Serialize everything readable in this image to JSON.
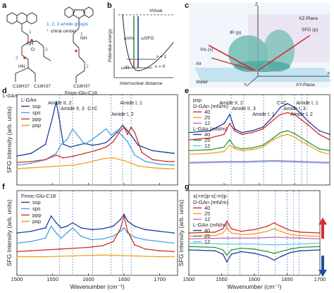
{
  "panel_a": {
    "label": "a",
    "legend_amide": "1, 2, 3 amide groups",
    "legend_chiral": "chiral center",
    "mol1_name": "L-GAn",
    "mol1_chain": "C18H37",
    "mol2_name": "Fmoc-Glu-C18",
    "mol2_chain": "C18H37",
    "amide_numbers": [
      "1",
      "2",
      "3",
      "1",
      "2"
    ],
    "nh": "NH",
    "hn": "HN",
    "o": "O",
    "colors": {
      "amide_number": "#2f6fd0",
      "chiral": "#e03020"
    }
  },
  "panel_b": {
    "label": "b",
    "virtual": "Virtual",
    "v1": "v = 1",
    "v0": "v = 0",
    "w_vis": "ωVis",
    "w_sfg": "ωSFG",
    "w_ir": "ωIR",
    "ylabel": "Potential energy",
    "xlabel": "Internuclear distance"
  },
  "panel_c": {
    "label": "c",
    "z": "Z",
    "xz_plane": "XZ-Plane",
    "xy_plane": "XY-Plane",
    "air": "Air",
    "water": "Water",
    "ir": "IR (p)",
    "vis": "Vis (s)",
    "sfg": "SFG (p)",
    "x": "X",
    "y": "Y"
  },
  "chart_data": [
    {
      "type": "line",
      "panel": "d",
      "xlabel": "",
      "ylabel": "SFG Intensity (arb. units)",
      "xlim": [
        1500,
        1725
      ],
      "legend_title": "L-GAn",
      "legend_position": "top-left",
      "series": [
        {
          "name": "ssp",
          "color": "#1f3f9a",
          "x": [
            1500,
            1520,
            1540,
            1550,
            1555,
            1560,
            1565,
            1575,
            1585,
            1595,
            1605,
            1615,
            1625,
            1632,
            1640,
            1648,
            1655,
            1660,
            1670,
            1690,
            1710,
            1720
          ],
          "y": [
            0.32,
            0.35,
            0.45,
            0.75,
            0.92,
            0.7,
            0.45,
            0.42,
            0.44,
            0.46,
            0.44,
            0.45,
            0.47,
            0.52,
            0.58,
            0.66,
            0.6,
            0.55,
            0.44,
            0.38,
            0.36,
            0.35
          ]
        },
        {
          "name": "sps",
          "color": "#4aa0e0",
          "x": [
            1500,
            1520,
            1540,
            1555,
            1562,
            1570,
            1578,
            1585,
            1595,
            1605,
            1615,
            1625,
            1632,
            1640,
            1648,
            1655,
            1665,
            1680,
            1700,
            1720
          ],
          "y": [
            0.22,
            0.24,
            0.28,
            0.35,
            0.45,
            0.5,
            0.62,
            0.55,
            0.45,
            0.5,
            0.56,
            0.62,
            0.55,
            0.6,
            0.54,
            0.48,
            0.33,
            0.26,
            0.23,
            0.22
          ]
        },
        {
          "name": "ppp",
          "color": "#d0302a",
          "x": [
            1500,
            1520,
            1540,
            1555,
            1565,
            1580,
            1595,
            1610,
            1625,
            1635,
            1645,
            1650,
            1655,
            1660,
            1665,
            1675,
            1690,
            1710,
            1720
          ],
          "y": [
            0.25,
            0.26,
            0.28,
            0.33,
            0.3,
            0.32,
            0.35,
            0.38,
            0.42,
            0.48,
            0.6,
            0.64,
            0.56,
            0.64,
            0.58,
            0.36,
            0.28,
            0.26,
            0.26
          ]
        },
        {
          "name": "psp",
          "color": "#f0a020",
          "x": [
            1500,
            1520,
            1540,
            1560,
            1580,
            1600,
            1620,
            1635,
            1650,
            1660,
            1670,
            1690,
            1710,
            1720
          ],
          "y": [
            0.18,
            0.19,
            0.2,
            0.21,
            0.22,
            0.25,
            0.29,
            0.3,
            0.27,
            0.24,
            0.21,
            0.19,
            0.18,
            0.18
          ]
        }
      ],
      "annotations": [
        {
          "text": "Amide II, 2",
          "x": 1560
        },
        {
          "text": "Amide II, 3",
          "x": 1578
        },
        {
          "text": "Amide I, 2",
          "x": 1648
        },
        {
          "text": "Amide I, 1",
          "x": 1660
        },
        {
          "text": "C=C",
          "x": 1606
        }
      ],
      "dashed_lines_x": [
        1560,
        1578,
        1606,
        1632,
        1648,
        1660
      ]
    },
    {
      "type": "line",
      "panel": "e",
      "xlabel": "",
      "ylabel": "",
      "xlim": [
        1500,
        1700
      ],
      "legend_title": "psp",
      "legend_position": "top-left",
      "series": [
        {
          "name": "D-GAn 40",
          "color": "#d0302a",
          "x": [
            1500,
            1530,
            1550,
            1558,
            1565,
            1575,
            1590,
            1605,
            1620,
            1630,
            1640,
            1650,
            1660,
            1670,
            1685,
            1700
          ],
          "y": [
            0.5,
            0.52,
            0.56,
            0.68,
            0.6,
            0.56,
            0.58,
            0.62,
            0.72,
            0.78,
            0.8,
            0.78,
            0.72,
            0.66,
            0.56,
            0.5
          ]
        },
        {
          "name": "D-GAn 25",
          "color": "#f0a020",
          "x": [
            1500,
            1530,
            1550,
            1558,
            1565,
            1575,
            1590,
            1605,
            1620,
            1630,
            1640,
            1650,
            1660,
            1670,
            1685,
            1700
          ],
          "y": [
            0.34,
            0.35,
            0.37,
            0.44,
            0.4,
            0.38,
            0.39,
            0.42,
            0.5,
            0.54,
            0.56,
            0.53,
            0.48,
            0.44,
            0.37,
            0.34
          ]
        },
        {
          "name": "D-GAn 12",
          "color": "#c76bbd",
          "x": [
            1500,
            1550,
            1580,
            1620,
            1660,
            1700
          ],
          "y": [
            0.25,
            0.26,
            0.26,
            0.27,
            0.26,
            0.25
          ]
        },
        {
          "name": "L-GAn 40",
          "color": "#1f3f9a",
          "x": [
            1500,
            1530,
            1550,
            1558,
            1565,
            1575,
            1590,
            1605,
            1620,
            1630,
            1640,
            1650,
            1660,
            1670,
            1685,
            1700
          ],
          "y": [
            0.58,
            0.6,
            0.68,
            0.78,
            0.62,
            0.58,
            0.6,
            0.64,
            0.76,
            0.86,
            0.9,
            0.86,
            0.78,
            0.7,
            0.6,
            0.56
          ]
        },
        {
          "name": "L-GAn 25",
          "color": "#2a9a3a",
          "x": [
            1500,
            1530,
            1550,
            1558,
            1565,
            1575,
            1590,
            1605,
            1620,
            1630,
            1640,
            1650,
            1660,
            1670,
            1685,
            1700
          ],
          "y": [
            0.38,
            0.39,
            0.42,
            0.5,
            0.42,
            0.4,
            0.41,
            0.44,
            0.52,
            0.58,
            0.6,
            0.57,
            0.52,
            0.47,
            0.4,
            0.38
          ]
        },
        {
          "name": "L-GAn 12",
          "color": "#60c8e8",
          "x": [
            1500,
            1550,
            1580,
            1620,
            1660,
            1700
          ],
          "y": [
            0.24,
            0.25,
            0.25,
            0.26,
            0.25,
            0.24
          ]
        }
      ],
      "legend_groups": [
        {
          "title": "D-GAn (mN/m)",
          "entries": [
            "40",
            "25",
            "12"
          ]
        },
        {
          "title": "L-GAn (mN/m)",
          "entries": [
            "40",
            "25",
            "12"
          ]
        }
      ],
      "annotations": [
        {
          "text": "Amide II, 2",
          "x": 1560
        },
        {
          "text": "Amide II, 3",
          "x": 1578
        },
        {
          "text": "Amide I, 1",
          "x": 1606
        },
        {
          "text": "C=C",
          "x": 1632
        },
        {
          "text": "Amide I, 3",
          "x": 1650
        },
        {
          "text": "Amide I, 2",
          "x": 1660
        },
        {
          "text": "Amide I, 1",
          "x": 1668
        }
      ],
      "dashed_lines_x": [
        1560,
        1578,
        1606,
        1632,
        1650,
        1660,
        1668
      ]
    },
    {
      "type": "line",
      "panel": "f",
      "xlabel": "Wavenumber (cm⁻¹)",
      "ylabel": "SFG Intensity (arb. units)",
      "xlim": [
        1500,
        1725
      ],
      "xticks": [
        1500,
        1550,
        1600,
        1650,
        1700
      ],
      "legend_title": "Fmoc-Glu-C18",
      "legend_position": "top-left",
      "series": [
        {
          "name": "ssp",
          "color": "#1f3f9a",
          "x": [
            1500,
            1520,
            1540,
            1548,
            1555,
            1562,
            1570,
            1578,
            1590,
            1605,
            1620,
            1635,
            1645,
            1650,
            1655,
            1665,
            1680,
            1700,
            1720
          ],
          "y": [
            0.5,
            0.52,
            0.56,
            0.7,
            0.62,
            0.56,
            0.58,
            0.62,
            0.56,
            0.54,
            0.55,
            0.58,
            0.66,
            0.72,
            0.64,
            0.58,
            0.54,
            0.52,
            0.5
          ]
        },
        {
          "name": "sps",
          "color": "#4aa0e0",
          "x": [
            1500,
            1520,
            1540,
            1548,
            1555,
            1562,
            1570,
            1578,
            1590,
            1605,
            1620,
            1635,
            1645,
            1650,
            1655,
            1665,
            1680,
            1700,
            1720
          ],
          "y": [
            0.38,
            0.4,
            0.44,
            0.58,
            0.5,
            0.44,
            0.5,
            0.56,
            0.46,
            0.42,
            0.43,
            0.46,
            0.52,
            0.56,
            0.5,
            0.45,
            0.42,
            0.4,
            0.38
          ]
        },
        {
          "name": "ppp",
          "color": "#d0302a",
          "x": [
            1500,
            1520,
            1540,
            1560,
            1580,
            1600,
            1620,
            1635,
            1645,
            1650,
            1655,
            1665,
            1680,
            1700,
            1720
          ],
          "y": [
            0.28,
            0.29,
            0.3,
            0.31,
            0.32,
            0.33,
            0.35,
            0.4,
            0.55,
            0.7,
            0.52,
            0.36,
            0.31,
            0.29,
            0.28
          ]
        },
        {
          "name": "psp",
          "color": "#f0a020",
          "x": [
            1500,
            1540,
            1580,
            1620,
            1660,
            1700,
            1720
          ],
          "y": [
            0.22,
            0.22,
            0.23,
            0.24,
            0.23,
            0.22,
            0.22
          ]
        }
      ],
      "dashed_lines_x": [
        1560,
        1578,
        1606,
        1632,
        1648,
        1660
      ]
    },
    {
      "type": "line",
      "panel": "g",
      "xlabel": "Wavenumber (cm⁻¹)",
      "ylabel": "SFG Intensity (arb. units)",
      "xlim": [
        1500,
        1700
      ],
      "xticks": [
        1500,
        1550,
        1600,
        1650,
        1700
      ],
      "legend_title": "s(+m)p-s(-m)p",
      "legend_position": "top-left",
      "series": [
        {
          "name": "D-GAn 40",
          "color": "#d0302a",
          "x": [
            1500,
            1540,
            1552,
            1558,
            1565,
            1580,
            1600,
            1620,
            1630,
            1640,
            1655,
            1670,
            1700
          ],
          "y": [
            0.5,
            0.51,
            0.55,
            0.64,
            0.55,
            0.52,
            0.54,
            0.58,
            0.62,
            0.58,
            0.53,
            0.51,
            0.5
          ]
        },
        {
          "name": "D-GAn 25",
          "color": "#f0a020",
          "x": [
            1500,
            1540,
            1552,
            1558,
            1565,
            1580,
            1600,
            1620,
            1630,
            1640,
            1655,
            1670,
            1700
          ],
          "y": [
            0.46,
            0.47,
            0.5,
            0.56,
            0.5,
            0.48,
            0.49,
            0.52,
            0.55,
            0.52,
            0.48,
            0.47,
            0.46
          ]
        },
        {
          "name": "D-GAn 12",
          "color": "#c76bbd",
          "x": [
            1500,
            1560,
            1600,
            1630,
            1670,
            1700
          ],
          "y": [
            0.43,
            0.44,
            0.44,
            0.45,
            0.44,
            0.43
          ]
        },
        {
          "name": "L-GAn 40",
          "color": "#1f3f9a",
          "x": [
            1500,
            1540,
            1552,
            1558,
            1565,
            1580,
            1600,
            1620,
            1630,
            1640,
            1655,
            1670,
            1700
          ],
          "y": [
            0.3,
            0.29,
            0.25,
            0.16,
            0.25,
            0.28,
            0.26,
            0.22,
            0.18,
            0.22,
            0.27,
            0.29,
            0.3
          ]
        },
        {
          "name": "L-GAn 25",
          "color": "#2a9a3a",
          "x": [
            1500,
            1540,
            1552,
            1558,
            1565,
            1580,
            1600,
            1620,
            1630,
            1640,
            1655,
            1670,
            1700
          ],
          "y": [
            0.34,
            0.33,
            0.3,
            0.24,
            0.3,
            0.32,
            0.31,
            0.28,
            0.26,
            0.28,
            0.31,
            0.33,
            0.34
          ]
        },
        {
          "name": "L-GAn 12",
          "color": "#60c8e8",
          "x": [
            1500,
            1560,
            1600,
            1630,
            1670,
            1700
          ],
          "y": [
            0.38,
            0.37,
            0.37,
            0.36,
            0.37,
            0.38
          ]
        }
      ],
      "legend_groups": [
        {
          "title": "D-GAn (mN/m)",
          "entries": [
            "40",
            "25",
            "12"
          ]
        },
        {
          "title": "L-GAn (mN/m)",
          "entries": [
            "40",
            "25",
            "12"
          ]
        }
      ],
      "dashed_lines_x": [
        1560,
        1578,
        1606,
        1632,
        1650,
        1660,
        1668
      ]
    }
  ]
}
